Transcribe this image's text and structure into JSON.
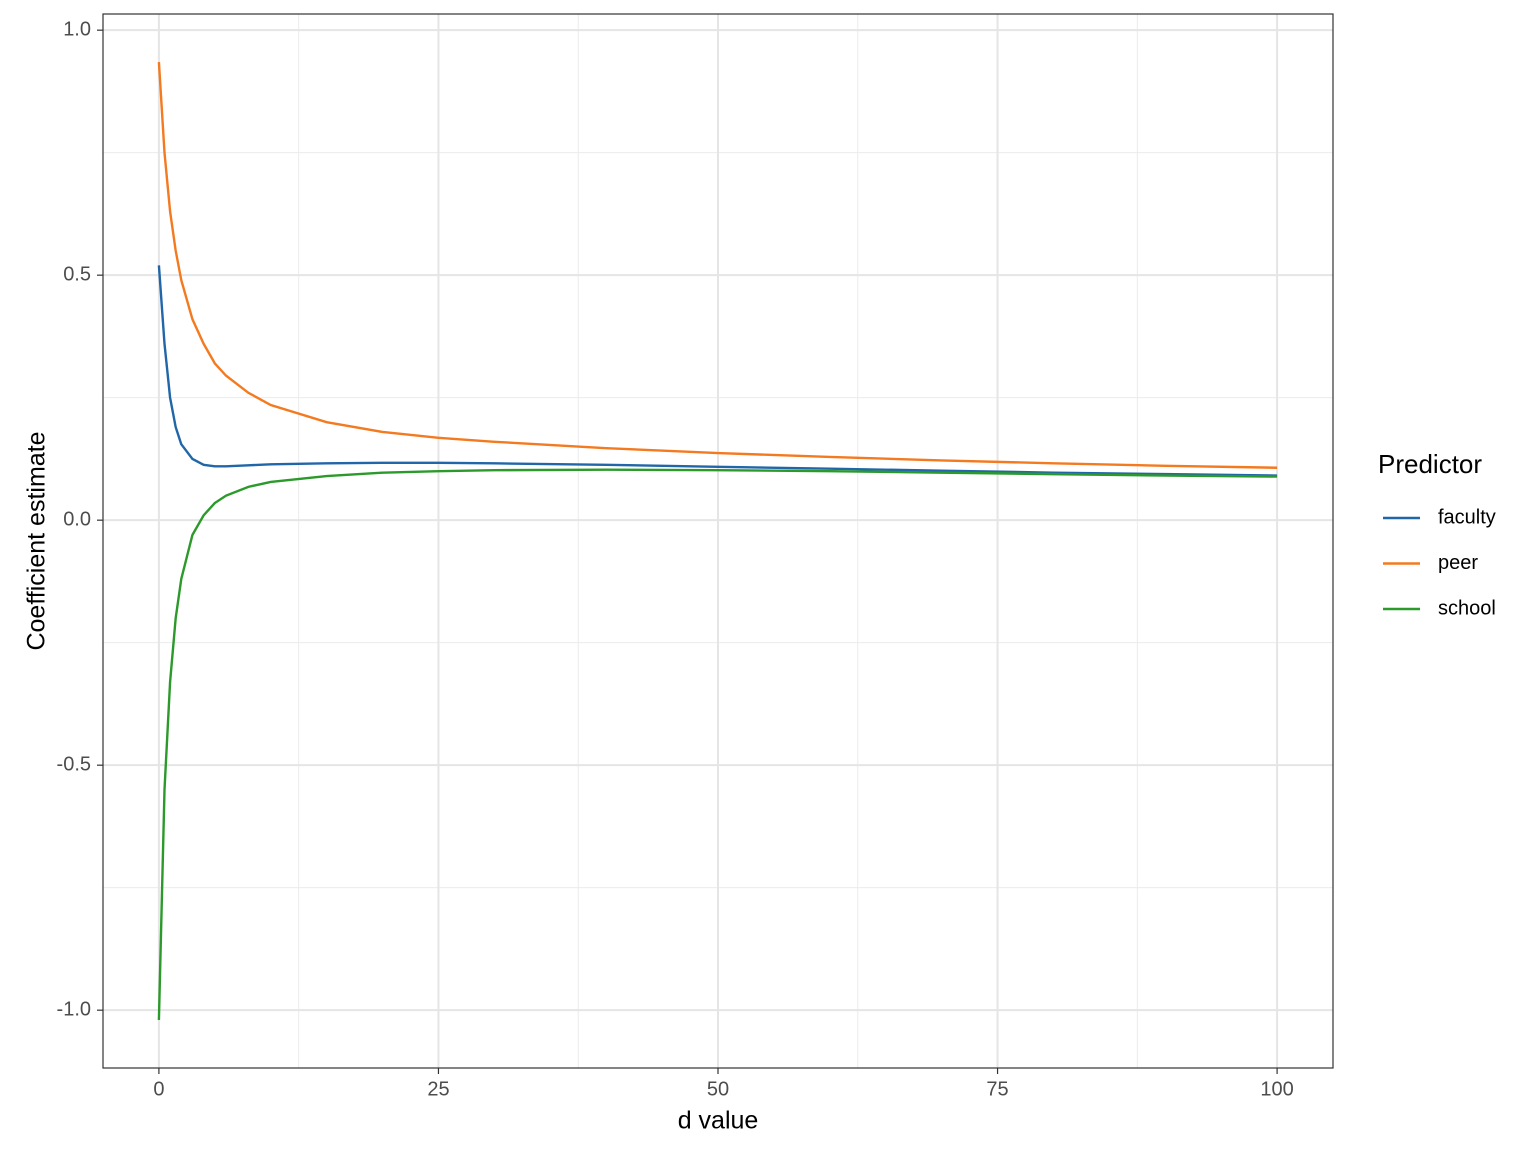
{
  "chart_data": {
    "type": "line",
    "x_label": "d value",
    "y_label": "Coefficient estimate",
    "legend_title": "Predictor",
    "x": [
      0,
      0.5,
      1,
      1.5,
      2,
      3,
      4,
      5,
      6,
      8,
      10,
      15,
      20,
      25,
      30,
      40,
      50,
      60,
      70,
      80,
      90,
      100
    ],
    "series": [
      {
        "name": "faculty",
        "color": "#2166a8",
        "values": [
          0.52,
          0.36,
          0.25,
          0.19,
          0.155,
          0.125,
          0.113,
          0.11,
          0.11,
          0.112,
          0.114,
          0.116,
          0.117,
          0.117,
          0.116,
          0.113,
          0.109,
          0.105,
          0.101,
          0.097,
          0.094,
          0.091
        ]
      },
      {
        "name": "peer",
        "color": "#f47a20",
        "values": [
          0.935,
          0.75,
          0.63,
          0.55,
          0.49,
          0.41,
          0.36,
          0.32,
          0.295,
          0.26,
          0.235,
          0.2,
          0.18,
          0.168,
          0.16,
          0.147,
          0.137,
          0.129,
          0.122,
          0.116,
          0.111,
          0.107
        ]
      },
      {
        "name": "school",
        "color": "#2b9a2b",
        "values": [
          -1.02,
          -0.55,
          -0.33,
          -0.2,
          -0.12,
          -0.03,
          0.01,
          0.035,
          0.05,
          0.068,
          0.078,
          0.09,
          0.097,
          0.1,
          0.102,
          0.103,
          0.102,
          0.1,
          0.097,
          0.094,
          0.091,
          0.089
        ]
      }
    ],
    "xlim": [
      -5,
      105
    ],
    "ylim": [
      -1.118,
      1.033
    ],
    "xticks": [
      0,
      25,
      50,
      75,
      100
    ],
    "yticks": [
      {
        "value": -1,
        "label": "-1.0"
      },
      -0.5,
      {
        "value": 0,
        "label": "0.0"
      },
      0.5,
      {
        "value": 1,
        "label": "1.0"
      }
    ],
    "minor_xticks": [
      12.5,
      37.5,
      62.5,
      87.5
    ],
    "minor_yticks": [
      -0.75,
      -0.25,
      0.25,
      0.75
    ],
    "grid": true,
    "legend_position": "right"
  }
}
